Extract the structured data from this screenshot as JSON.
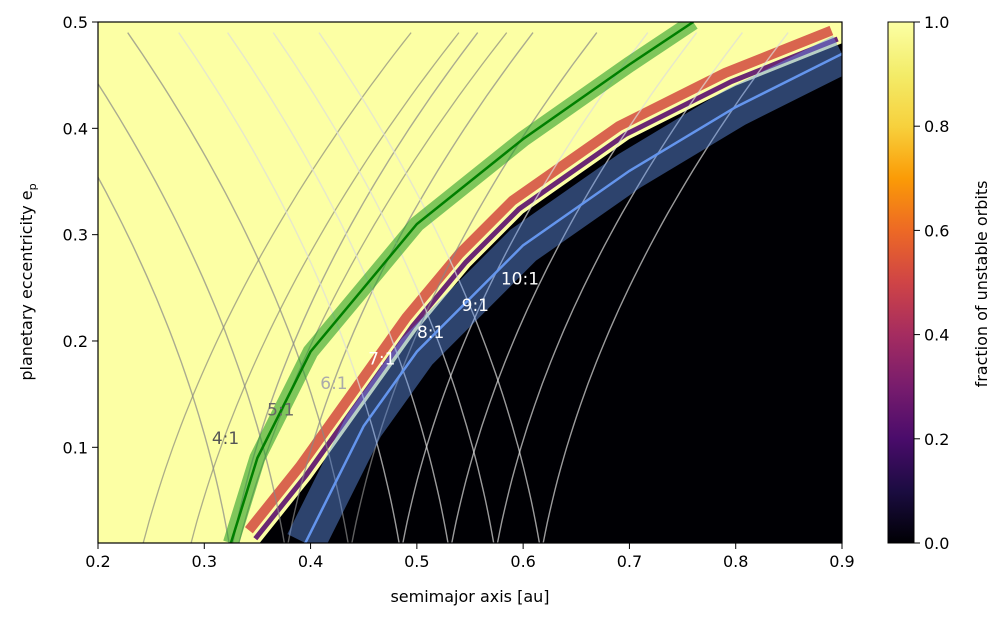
{
  "chart_data": {
    "type": "heatmap",
    "title": "",
    "xlabel": "semimajor axis [au]",
    "ylabel_main": "planetary eccentricity e",
    "ylabel_sub": "p",
    "xlim": [
      0.2,
      0.9
    ],
    "ylim": [
      0.01,
      0.5
    ],
    "xticks": [
      "0.2",
      "0.3",
      "0.4",
      "0.5",
      "0.6",
      "0.7",
      "0.8",
      "0.9"
    ],
    "yticks": [
      "0.1",
      "0.2",
      "0.3",
      "0.4",
      "0.5"
    ],
    "grid": false,
    "colorbar": {
      "label": "fraction of unstable orbits",
      "colormap": "inferno",
      "range": [
        0.0,
        1.0
      ],
      "ticks": [
        "0.0",
        "0.2",
        "0.4",
        "0.6",
        "0.8",
        "1.0"
      ]
    },
    "stability_boundary": {
      "description_points": [
        [
          0.352,
          0.01
        ],
        [
          0.4,
          0.07
        ],
        [
          0.45,
          0.14
        ],
        [
          0.5,
          0.21
        ],
        [
          0.55,
          0.27
        ],
        [
          0.6,
          0.32
        ],
        [
          0.7,
          0.39
        ],
        [
          0.8,
          0.44
        ],
        [
          0.9,
          0.48
        ]
      ]
    },
    "green_curve": {
      "color": "#008000",
      "points": [
        [
          0.325,
          0.01
        ],
        [
          0.35,
          0.09
        ],
        [
          0.4,
          0.19
        ],
        [
          0.5,
          0.31
        ],
        [
          0.6,
          0.39
        ],
        [
          0.7,
          0.46
        ],
        [
          0.76,
          0.5
        ]
      ]
    },
    "blue_curve": {
      "color": "#6495ED",
      "points": [
        [
          0.395,
          0.01
        ],
        [
          0.45,
          0.12
        ],
        [
          0.5,
          0.19
        ],
        [
          0.6,
          0.29
        ],
        [
          0.7,
          0.36
        ],
        [
          0.8,
          0.42
        ],
        [
          0.9,
          0.47
        ]
      ]
    },
    "resonances": [
      {
        "label": "4:1",
        "a": 0.325,
        "label_x": 0.32,
        "label_y": 0.103,
        "color": "#555555"
      },
      {
        "label": "5:1",
        "a": 0.377,
        "label_x": 0.372,
        "label_y": 0.13,
        "color": "#666666"
      },
      {
        "label": "6:1",
        "a": 0.437,
        "label_x": 0.422,
        "label_y": 0.155,
        "color": "#aaaaaa"
      },
      {
        "label": "7:1",
        "a": 0.485,
        "label_x": 0.467,
        "label_y": 0.178,
        "color": "#ffffff"
      },
      {
        "label": "8:1",
        "a": 0.531,
        "label_x": 0.513,
        "label_y": 0.203,
        "color": "#ffffff"
      },
      {
        "label": "9:1",
        "a": 0.574,
        "label_x": 0.555,
        "label_y": 0.228,
        "color": "#ffffff"
      },
      {
        "label": "10:1",
        "a": 0.617,
        "label_x": 0.597,
        "label_y": 0.253,
        "color": "#ffffff"
      }
    ]
  }
}
